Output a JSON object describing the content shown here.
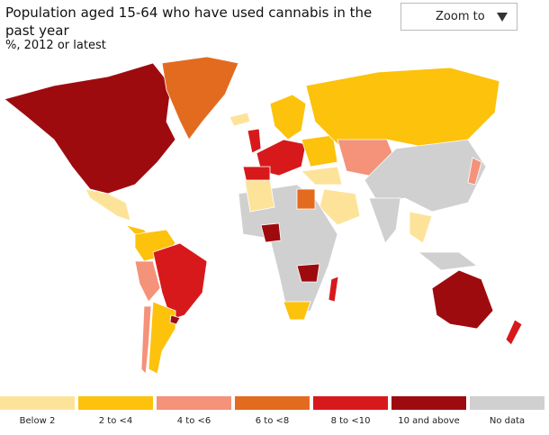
{
  "header": {
    "title": "Population aged 15-64 who have used cannabis in the past year",
    "subtitle": "%, 2012 or latest",
    "zoom_button": "Zoom to"
  },
  "legend": {
    "items": [
      {
        "label": "Below 2",
        "color": "#fde39a"
      },
      {
        "label": "2 to <4",
        "color": "#fcc20c"
      },
      {
        "label": "4 to <6",
        "color": "#f4927a"
      },
      {
        "label": "6 to <8",
        "color": "#e36b1f"
      },
      {
        "label": "8 to <10",
        "color": "#d7191c"
      },
      {
        "label": "10 and above",
        "color": "#9e0b0f"
      },
      {
        "label": "No data",
        "color": "#d0d0d0"
      }
    ]
  }
}
